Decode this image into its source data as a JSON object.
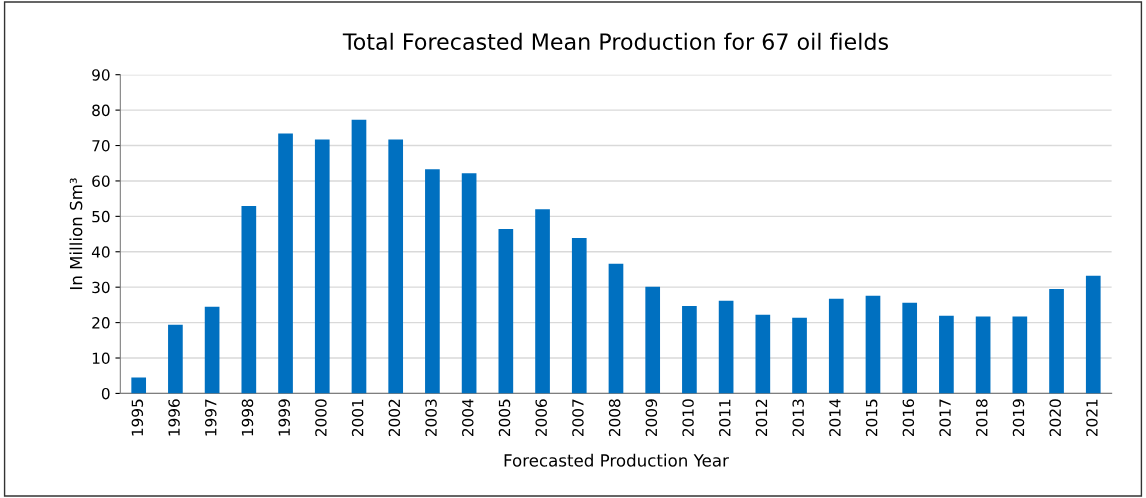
{
  "chart_data": {
    "type": "bar",
    "title": "Total Forecasted Mean Production for 67 oil fields",
    "xlabel": "Forecasted Production Year",
    "ylabel": "In Million Sm³",
    "categories": [
      "1995",
      "1996",
      "1997",
      "1998",
      "1999",
      "2000",
      "2001",
      "2002",
      "2003",
      "2004",
      "2005",
      "2006",
      "2007",
      "2008",
      "2009",
      "2010",
      "2011",
      "2012",
      "2013",
      "2014",
      "2015",
      "2016",
      "2017",
      "2018",
      "2019",
      "2020",
      "2021"
    ],
    "values": [
      4.5,
      19.4,
      24.5,
      52.9,
      73.4,
      71.7,
      77.3,
      71.7,
      63.3,
      62.2,
      46.4,
      52.0,
      43.9,
      36.6,
      30.1,
      24.7,
      26.2,
      22.2,
      21.4,
      26.7,
      27.6,
      25.6,
      21.9,
      21.7,
      21.7,
      29.5,
      33.2
    ],
    "color": "#0070c0",
    "ylim": [
      0,
      90
    ],
    "yticks": [
      0,
      10,
      20,
      30,
      40,
      50,
      60,
      70,
      80,
      90
    ],
    "grid": "y",
    "legend": false
  }
}
